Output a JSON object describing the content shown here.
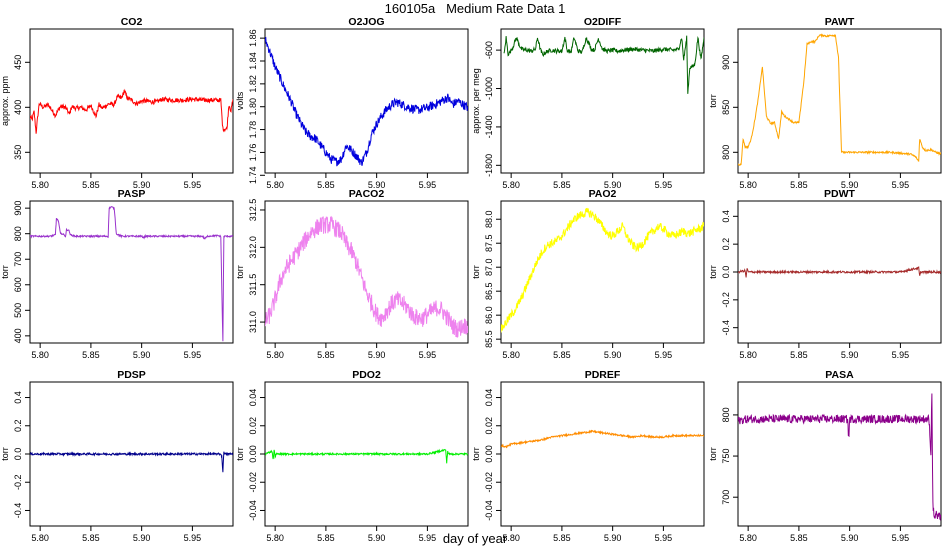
{
  "page": {
    "title": "160105a   Medium Rate Data 1",
    "xlabel": "day of year"
  },
  "chart_data": [
    {
      "type": "line",
      "title": "CO2",
      "ylabel": "approx. ppm",
      "color": "#ff0000",
      "xlim": [
        5.79,
        5.99
      ],
      "ylim": [
        327,
        487
      ],
      "xticks": [
        5.8,
        5.85,
        5.9,
        5.95
      ],
      "xtick_labels": [
        "5.80",
        "5.85",
        "5.90",
        "5.95"
      ],
      "yticks": [
        350,
        400,
        450
      ],
      "ytick_labels": [
        "350",
        "400",
        "450"
      ],
      "noise": 2.5,
      "x": [
        5.79,
        5.792,
        5.794,
        5.796,
        5.799,
        5.803,
        5.808,
        5.812,
        5.815,
        5.82,
        5.825,
        5.829,
        5.831,
        5.835,
        5.84,
        5.845,
        5.85,
        5.855,
        5.858,
        5.861,
        5.868,
        5.873,
        5.876,
        5.88,
        5.883,
        5.886,
        5.89,
        5.895,
        5.9,
        5.905,
        5.91,
        5.915,
        5.92,
        5.93,
        5.94,
        5.95,
        5.96,
        5.97,
        5.978,
        5.98,
        5.984,
        5.986,
        5.988,
        5.99
      ],
      "y": [
        390,
        386,
        395,
        372,
        404,
        400,
        403,
        396,
        391,
        401,
        400,
        392,
        401,
        399,
        400,
        397,
        402,
        390,
        403,
        399,
        404,
        403,
        412,
        410,
        418,
        410,
        408,
        404,
        407,
        407,
        406,
        406,
        409,
        408,
        408,
        409,
        408,
        408,
        408,
        376,
        376,
        403,
        396,
        409
      ]
    },
    {
      "type": "line",
      "title": "O2JOG",
      "ylabel": "volts",
      "color": "#0000dd",
      "xlim": [
        5.79,
        5.99
      ],
      "ylim": [
        1.742,
        1.868
      ],
      "xticks": [
        5.8,
        5.85,
        5.9,
        5.95
      ],
      "xtick_labels": [
        "5.80",
        "5.85",
        "5.90",
        "5.95"
      ],
      "yticks": [
        1.74,
        1.76,
        1.78,
        1.8,
        1.82,
        1.84,
        1.86
      ],
      "ytick_labels": [
        "1.74",
        "1.76",
        "1.78",
        "1.80",
        "1.82",
        "1.84",
        "1.86"
      ],
      "noise": 0.004,
      "x": [
        5.788,
        5.792,
        5.796,
        5.8,
        5.805,
        5.81,
        5.815,
        5.82,
        5.825,
        5.83,
        5.835,
        5.84,
        5.845,
        5.85,
        5.855,
        5.86,
        5.865,
        5.87,
        5.875,
        5.88,
        5.885,
        5.89,
        5.895,
        5.9,
        5.905,
        5.91,
        5.915,
        5.92,
        5.93,
        5.94,
        5.95,
        5.96,
        5.966,
        5.97,
        5.975,
        5.98,
        5.985,
        5.99
      ],
      "y": [
        1.862,
        1.855,
        1.845,
        1.835,
        1.825,
        1.815,
        1.806,
        1.795,
        1.786,
        1.778,
        1.774,
        1.772,
        1.766,
        1.76,
        1.754,
        1.752,
        1.754,
        1.766,
        1.762,
        1.757,
        1.751,
        1.76,
        1.776,
        1.785,
        1.792,
        1.798,
        1.802,
        1.804,
        1.8,
        1.797,
        1.799,
        1.803,
        1.806,
        1.808,
        1.802,
        1.805,
        1.802,
        1.799
      ]
    },
    {
      "type": "line",
      "title": "O2DIFF",
      "ylabel": "approx. per meg",
      "color": "#006400",
      "xlim": [
        5.79,
        5.99
      ],
      "ylim": [
        -1880,
        -380
      ],
      "xticks": [
        5.8,
        5.85,
        5.9,
        5.95
      ],
      "xtick_labels": [
        "5.80",
        "5.85",
        "5.90",
        "5.95"
      ],
      "yticks": [
        -1800,
        -1400,
        -1000,
        -600
      ],
      "ytick_labels": [
        "-1800",
        "-1400",
        "-1000",
        "-600"
      ],
      "noise": 22,
      "x": [
        5.793,
        5.795,
        5.797,
        5.799,
        5.802,
        5.805,
        5.81,
        5.815,
        5.82,
        5.824,
        5.826,
        5.829,
        5.831,
        5.834,
        5.84,
        5.845,
        5.85,
        5.853,
        5.855,
        5.859,
        5.862,
        5.866,
        5.87,
        5.874,
        5.879,
        5.882,
        5.886,
        5.89,
        5.895,
        5.9,
        5.905,
        5.91,
        5.92,
        5.93,
        5.94,
        5.95,
        5.96,
        5.965,
        5.968,
        5.97,
        5.973,
        5.974,
        5.976,
        5.979,
        5.981,
        5.984,
        5.987,
        5.99
      ],
      "y": [
        -650,
        -470,
        -640,
        -620,
        -560,
        -470,
        -590,
        -600,
        -610,
        -590,
        -470,
        -600,
        -650,
        -620,
        -600,
        -610,
        -610,
        -470,
        -600,
        -620,
        -470,
        -610,
        -620,
        -470,
        -590,
        -600,
        -480,
        -590,
        -610,
        -600,
        -610,
        -600,
        -590,
        -600,
        -610,
        -590,
        -600,
        -590,
        -470,
        -700,
        -470,
        -1050,
        -780,
        -770,
        -750,
        -470,
        -700,
        -470
      ]
    },
    {
      "type": "line",
      "title": "PAWT",
      "ylabel": "torr",
      "color": "#ffa500",
      "xlim": [
        5.79,
        5.99
      ],
      "ylim": [
        777,
        937
      ],
      "xticks": [
        5.8,
        5.85,
        5.9,
        5.95
      ],
      "xtick_labels": [
        "5.80",
        "5.85",
        "5.90",
        "5.95"
      ],
      "yticks": [
        800,
        850,
        900
      ],
      "ytick_labels": [
        "800",
        "850",
        "900"
      ],
      "noise": 1,
      "x": [
        5.79,
        5.793,
        5.795,
        5.797,
        5.8,
        5.803,
        5.806,
        5.81,
        5.814,
        5.818,
        5.822,
        5.826,
        5.83,
        5.833,
        5.836,
        5.84,
        5.845,
        5.85,
        5.855,
        5.858,
        5.862,
        5.866,
        5.87,
        5.874,
        5.878,
        5.882,
        5.886,
        5.889,
        5.892,
        5.9,
        5.91,
        5.92,
        5.93,
        5.94,
        5.95,
        5.96,
        5.965,
        5.968,
        5.969,
        5.972,
        5.975,
        5.98,
        5.985,
        5.99
      ],
      "y": [
        787,
        786,
        815,
        806,
        806,
        815,
        832,
        860,
        895,
        840,
        832,
        833,
        815,
        845,
        840,
        837,
        833,
        833,
        880,
        920,
        923,
        923,
        930,
        930,
        929,
        930,
        930,
        905,
        800,
        800,
        800,
        800,
        800,
        800,
        799,
        798,
        795,
        790,
        815,
        805,
        802,
        803,
        800,
        798
      ]
    },
    {
      "type": "line",
      "title": "PASP",
      "ylabel": "torr",
      "color": "#9932cc",
      "xlim": [
        5.79,
        5.99
      ],
      "ylim": [
        372,
        928
      ],
      "xticks": [
        5.8,
        5.85,
        5.9,
        5.95
      ],
      "xtick_labels": [
        "5.80",
        "5.85",
        "5.90",
        "5.95"
      ],
      "yticks": [
        400,
        500,
        600,
        700,
        800,
        900
      ],
      "ytick_labels": [
        "400",
        "500",
        "600",
        "700",
        "800",
        "900"
      ],
      "noise": 3,
      "x": [
        5.79,
        5.8,
        5.81,
        5.815,
        5.816,
        5.818,
        5.82,
        5.822,
        5.825,
        5.826,
        5.828,
        5.83,
        5.835,
        5.84,
        5.85,
        5.86,
        5.867,
        5.868,
        5.87,
        5.873,
        5.875,
        5.88,
        5.89,
        5.9,
        5.902,
        5.904,
        5.91,
        5.92,
        5.93,
        5.94,
        5.95,
        5.96,
        5.962,
        5.965,
        5.97,
        5.975,
        5.978,
        5.98,
        5.981,
        5.983,
        5.985,
        5.99
      ],
      "y": [
        790,
        790,
        790,
        795,
        860,
        850,
        800,
        800,
        790,
        815,
        815,
        795,
        790,
        790,
        790,
        790,
        790,
        900,
        905,
        900,
        800,
        790,
        790,
        790,
        785,
        790,
        790,
        790,
        790,
        790,
        790,
        790,
        780,
        790,
        792,
        792,
        790,
        380,
        790,
        790,
        790,
        790
      ]
    },
    {
      "type": "line",
      "title": "PACO2",
      "ylabel": "torr",
      "color": "#ee82ee",
      "xlim": [
        5.79,
        5.99
      ],
      "ylim": [
        310.72,
        312.62
      ],
      "xticks": [
        5.8,
        5.85,
        5.9,
        5.95
      ],
      "xtick_labels": [
        "5.80",
        "5.85",
        "5.90",
        "5.95"
      ],
      "yticks": [
        311.0,
        311.5,
        312.0,
        312.5
      ],
      "ytick_labels": [
        "311.0",
        "311.5",
        "312.0",
        "312.5"
      ],
      "noise": 0.12,
      "x": [
        5.79,
        5.795,
        5.8,
        5.805,
        5.81,
        5.815,
        5.82,
        5.825,
        5.83,
        5.835,
        5.84,
        5.845,
        5.85,
        5.855,
        5.86,
        5.865,
        5.87,
        5.875,
        5.88,
        5.885,
        5.89,
        5.895,
        5.9,
        5.905,
        5.91,
        5.915,
        5.92,
        5.925,
        5.93,
        5.935,
        5.94,
        5.945,
        5.95,
        5.955,
        5.96,
        5.965,
        5.97,
        5.975,
        5.98,
        5.985,
        5.99
      ],
      "y": [
        311.0,
        311.1,
        311.3,
        311.55,
        311.7,
        311.8,
        311.9,
        312.0,
        312.1,
        312.2,
        312.25,
        312.3,
        312.3,
        312.3,
        312.25,
        312.2,
        312.05,
        311.95,
        311.8,
        311.6,
        311.4,
        311.25,
        311.1,
        311.05,
        311.15,
        311.25,
        311.3,
        311.25,
        311.2,
        311.1,
        311.05,
        311.05,
        311.1,
        311.15,
        311.2,
        311.15,
        311.05,
        310.95,
        310.9,
        310.95,
        310.95
      ]
    },
    {
      "type": "line",
      "title": "PAO2",
      "ylabel": "torr",
      "color": "#ffff00",
      "xlim": [
        5.79,
        5.99
      ],
      "ylim": [
        85.42,
        88.38
      ],
      "xticks": [
        5.8,
        5.85,
        5.9,
        5.95
      ],
      "xtick_labels": [
        "5.80",
        "5.85",
        "5.90",
        "5.95"
      ],
      "yticks": [
        85.5,
        86.0,
        86.5,
        87.0,
        87.5,
        88.0
      ],
      "ytick_labels": [
        "85.5",
        "86.0",
        "86.5",
        "87.0",
        "87.5",
        "88.0"
      ],
      "noise": 0.09,
      "x": [
        5.79,
        5.795,
        5.8,
        5.805,
        5.81,
        5.815,
        5.82,
        5.825,
        5.83,
        5.835,
        5.84,
        5.845,
        5.85,
        5.855,
        5.86,
        5.865,
        5.87,
        5.875,
        5.88,
        5.885,
        5.89,
        5.895,
        5.9,
        5.905,
        5.91,
        5.915,
        5.92,
        5.925,
        5.93,
        5.935,
        5.94,
        5.945,
        5.95,
        5.955,
        5.96,
        5.965,
        5.97,
        5.975,
        5.98,
        5.985,
        5.99
      ],
      "y": [
        85.7,
        85.85,
        86.0,
        86.15,
        86.35,
        86.6,
        86.85,
        87.1,
        87.3,
        87.45,
        87.5,
        87.55,
        87.65,
        87.8,
        87.95,
        88.05,
        88.1,
        88.15,
        88.1,
        88.0,
        87.85,
        87.7,
        87.65,
        87.75,
        87.85,
        87.6,
        87.45,
        87.4,
        87.5,
        87.65,
        87.75,
        87.85,
        87.8,
        87.7,
        87.65,
        87.7,
        87.75,
        87.7,
        87.75,
        87.8,
        87.85
      ]
    },
    {
      "type": "line",
      "title": "PDWT",
      "ylabel": "torr",
      "color": "#a52a2a",
      "xlim": [
        5.79,
        5.99
      ],
      "ylim": [
        -0.51,
        0.51
      ],
      "xticks": [
        5.8,
        5.85,
        5.9,
        5.95
      ],
      "xtick_labels": [
        "5.80",
        "5.85",
        "5.90",
        "5.95"
      ],
      "yticks": [
        -0.4,
        -0.2,
        0.0,
        0.2,
        0.4
      ],
      "ytick_labels": [
        "-0.4",
        "-0.2",
        "0.0",
        "0.2",
        "0.4"
      ],
      "noise": 0.007,
      "x": [
        5.79,
        5.797,
        5.798,
        5.799,
        5.8,
        5.82,
        5.85,
        5.9,
        5.95,
        5.968,
        5.969,
        5.97,
        5.99
      ],
      "y": [
        0.0,
        0.01,
        -0.04,
        0.03,
        0.0,
        0.0,
        0.0,
        0.0,
        0.0,
        0.03,
        -0.03,
        0.0,
        0.0
      ]
    },
    {
      "type": "line",
      "title": "PDSP",
      "ylabel": "torr",
      "color": "#00008b",
      "xlim": [
        5.79,
        5.99
      ],
      "ylim": [
        -0.51,
        0.51
      ],
      "xticks": [
        5.8,
        5.85,
        5.9,
        5.95
      ],
      "xtick_labels": [
        "5.80",
        "5.85",
        "5.90",
        "5.95"
      ],
      "yticks": [
        -0.4,
        -0.2,
        0.0,
        0.2,
        0.4
      ],
      "ytick_labels": [
        "-0.4",
        "-0.2",
        "0.0",
        "0.2",
        "0.4"
      ],
      "noise": 0.007,
      "x": [
        5.79,
        5.82,
        5.85,
        5.9,
        5.95,
        5.978,
        5.979,
        5.98,
        5.981,
        5.982,
        5.99
      ],
      "y": [
        0.0,
        0.0,
        0.0,
        0.0,
        0.0,
        0.0,
        -0.02,
        -0.13,
        0.02,
        0.0,
        0.0
      ]
    },
    {
      "type": "line",
      "title": "PDO2",
      "ylabel": "torr",
      "color": "#00ee00",
      "xlim": [
        5.79,
        5.99
      ],
      "ylim": [
        -0.051,
        0.051
      ],
      "xticks": [
        5.8,
        5.85,
        5.9,
        5.95
      ],
      "xtick_labels": [
        "5.80",
        "5.85",
        "5.90",
        "5.95"
      ],
      "yticks": [
        -0.04,
        -0.02,
        0.0,
        0.02,
        0.04
      ],
      "ytick_labels": [
        "-0.04",
        "-0.02",
        "0.00",
        "0.02",
        "0.04"
      ],
      "noise": 0.0006,
      "x": [
        5.79,
        5.797,
        5.798,
        5.799,
        5.8,
        5.801,
        5.82,
        5.85,
        5.9,
        5.95,
        5.968,
        5.969,
        5.97,
        5.971,
        5.99
      ],
      "y": [
        0.0,
        0.002,
        -0.004,
        0.003,
        -0.002,
        0.0,
        0.0,
        0.0,
        0.0,
        0.0,
        0.003,
        -0.006,
        0.002,
        0.0,
        0.0
      ]
    },
    {
      "type": "line",
      "title": "PDREF",
      "ylabel": "torr",
      "color": "#ff8c00",
      "xlim": [
        5.79,
        5.99
      ],
      "ylim": [
        -0.051,
        0.051
      ],
      "xticks": [
        5.8,
        5.85,
        5.9,
        5.95
      ],
      "xtick_labels": [
        "5.80",
        "5.85",
        "5.90",
        "5.95"
      ],
      "yticks": [
        -0.04,
        -0.02,
        0.0,
        0.02,
        0.04
      ],
      "ytick_labels": [
        "-0.04",
        "-0.02",
        "0.00",
        "0.02",
        "0.04"
      ],
      "noise": 0.0006,
      "x": [
        5.79,
        5.795,
        5.8,
        5.81,
        5.82,
        5.83,
        5.84,
        5.85,
        5.86,
        5.87,
        5.88,
        5.89,
        5.9,
        5.91,
        5.92,
        5.93,
        5.94,
        5.95,
        5.96,
        5.97,
        5.98,
        5.99
      ],
      "y": [
        0.006,
        0.005,
        0.007,
        0.008,
        0.009,
        0.01,
        0.012,
        0.013,
        0.014,
        0.015,
        0.016,
        0.015,
        0.014,
        0.013,
        0.012,
        0.013,
        0.012,
        0.012,
        0.013,
        0.013,
        0.013,
        0.013
      ]
    },
    {
      "type": "line",
      "title": "PASA",
      "ylabel": "torr",
      "color": "#8b008b",
      "xlim": [
        5.79,
        5.99
      ],
      "ylim": [
        665,
        840
      ],
      "xticks": [
        5.8,
        5.85,
        5.9,
        5.95
      ],
      "xtick_labels": [
        "5.80",
        "5.85",
        "5.90",
        "5.95"
      ],
      "yticks": [
        700,
        750,
        800
      ],
      "ytick_labels": [
        "700",
        "750",
        "800"
      ],
      "noise": 5,
      "x": [
        5.79,
        5.8,
        5.82,
        5.85,
        5.87,
        5.898,
        5.899,
        5.9,
        5.92,
        5.95,
        5.97,
        5.978,
        5.979,
        5.98,
        5.981,
        5.982,
        5.983,
        5.984,
        5.985,
        5.987,
        5.99
      ],
      "y": [
        793,
        795,
        795,
        795,
        795,
        795,
        770,
        795,
        795,
        795,
        795,
        795,
        780,
        750,
        830,
        690,
        680,
        675,
        680,
        675,
        678
      ]
    }
  ]
}
